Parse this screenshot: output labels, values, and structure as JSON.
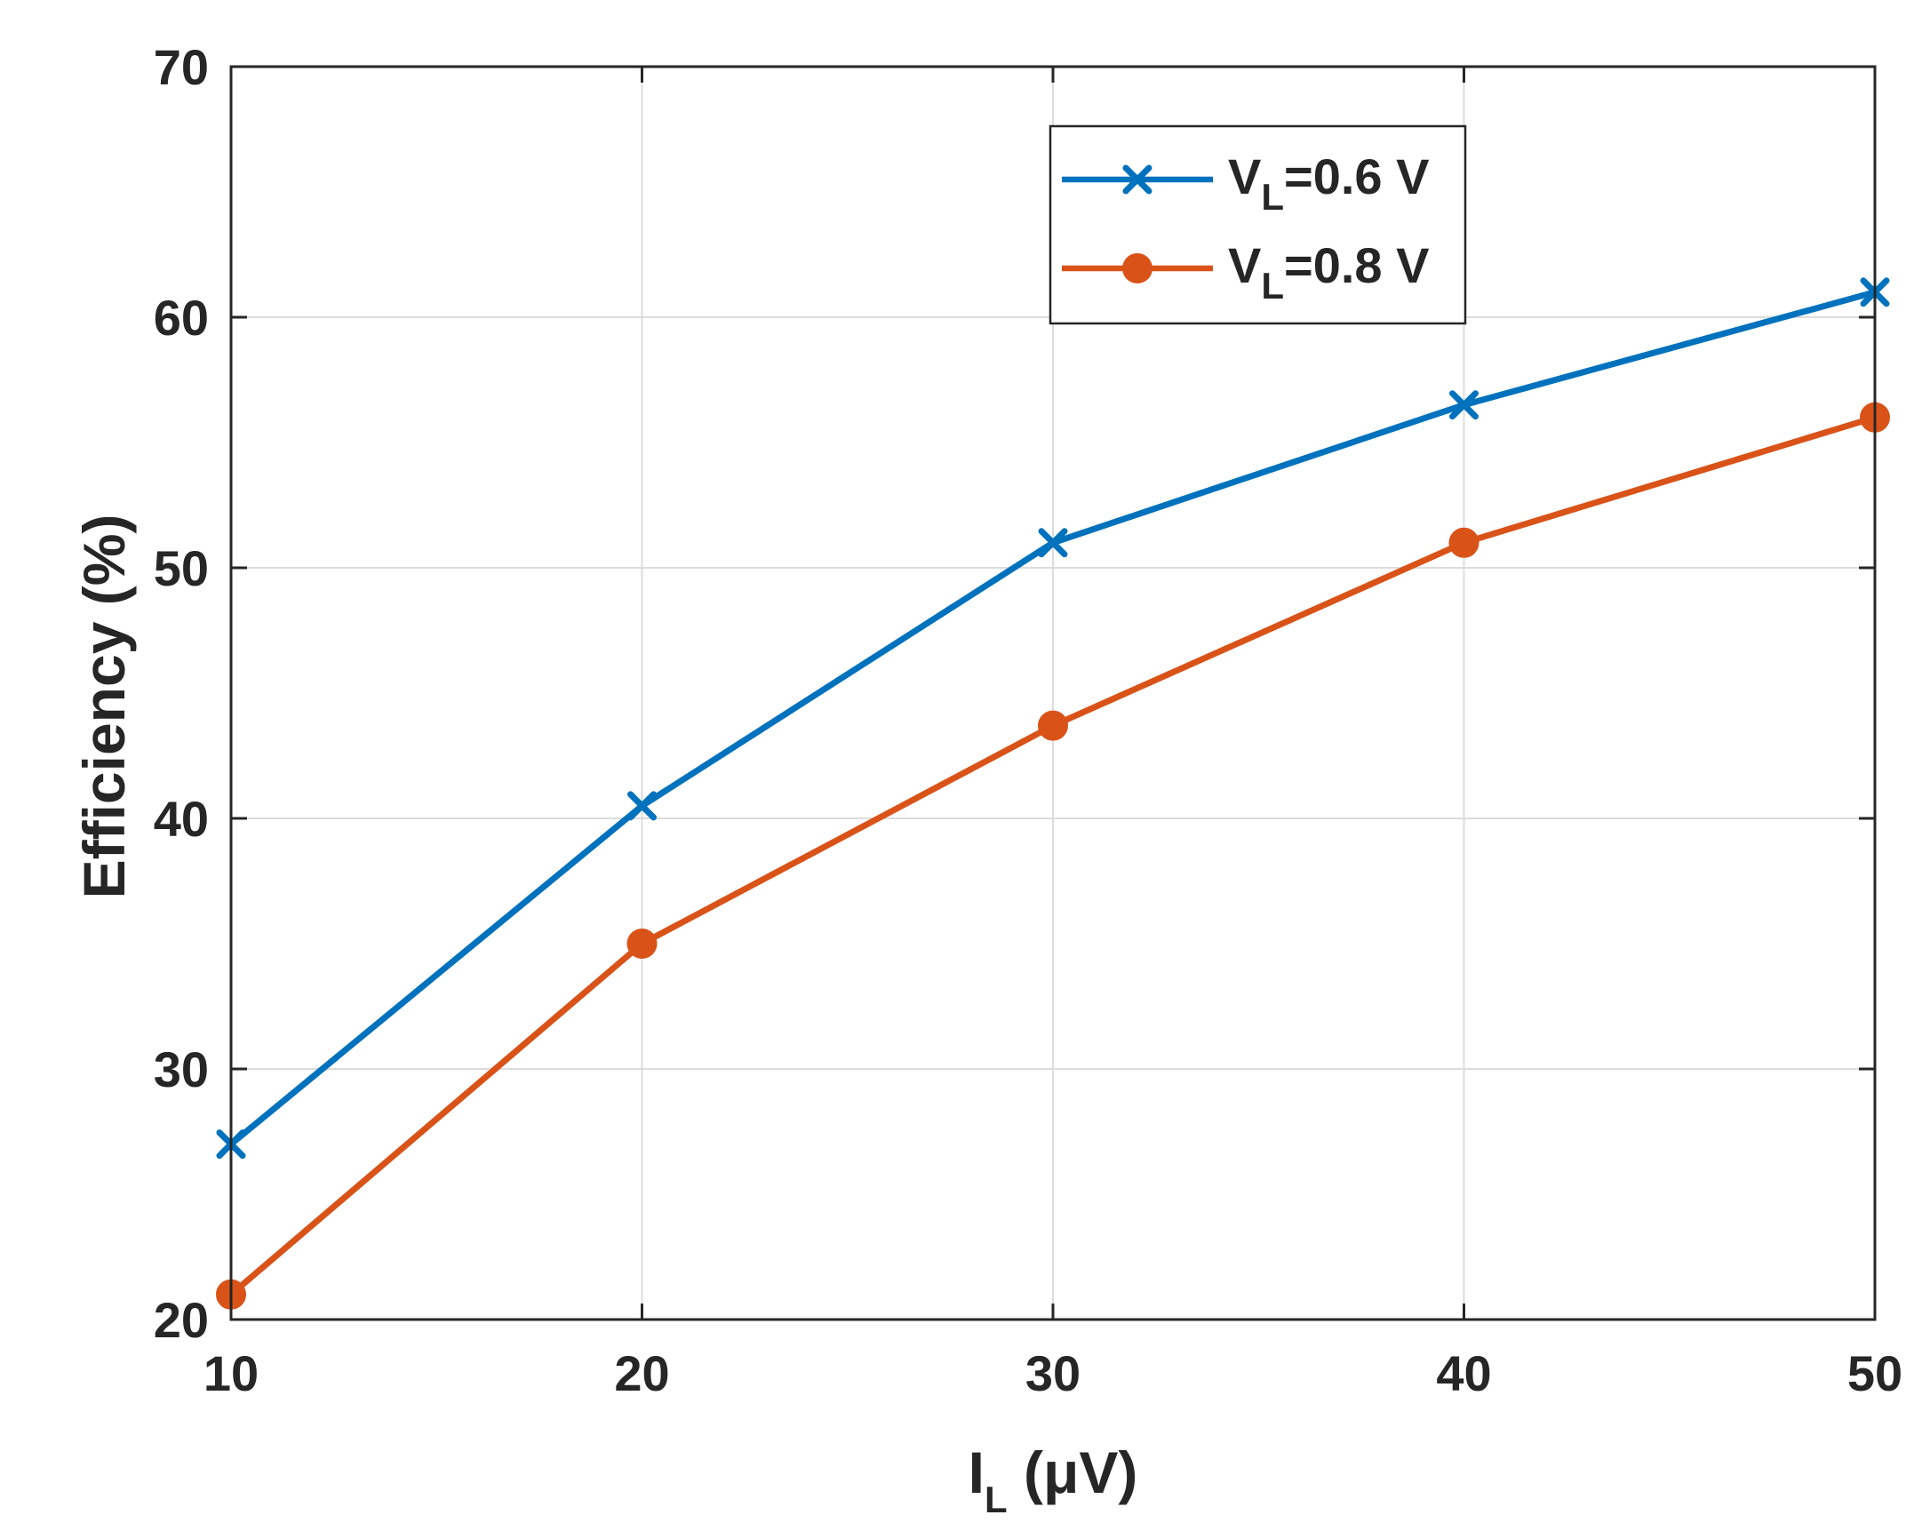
{
  "chart_data": {
    "type": "line",
    "title": "",
    "xlabel": {
      "main": "I",
      "sub": "L",
      "unit": " (μV)"
    },
    "ylabel": "Efficiency (%)",
    "x": [
      10,
      20,
      30,
      40,
      50
    ],
    "xlim": [
      10,
      50
    ],
    "ylim": [
      20,
      70
    ],
    "xticks": [
      10,
      20,
      30,
      40,
      50
    ],
    "yticks": [
      20,
      30,
      40,
      50,
      60,
      70
    ],
    "grid": true,
    "legend_position": "top-right",
    "series": [
      {
        "name": "V_L=0.6 V",
        "legend_main": "V",
        "legend_sub": "L",
        "legend_rest": "=0.6 V",
        "marker": "x",
        "color": "#0072BD",
        "values": [
          27,
          40.5,
          51,
          56.5,
          61
        ]
      },
      {
        "name": "V_L=0.8 V",
        "legend_main": "V",
        "legend_sub": "L",
        "legend_rest": "=0.8 V",
        "marker": "o",
        "color": "#D95319",
        "values": [
          21,
          35,
          43.7,
          51,
          56
        ]
      }
    ]
  },
  "colors": {
    "axis": "#262626",
    "grid": "#dcdcdc",
    "background": "#ffffff"
  }
}
